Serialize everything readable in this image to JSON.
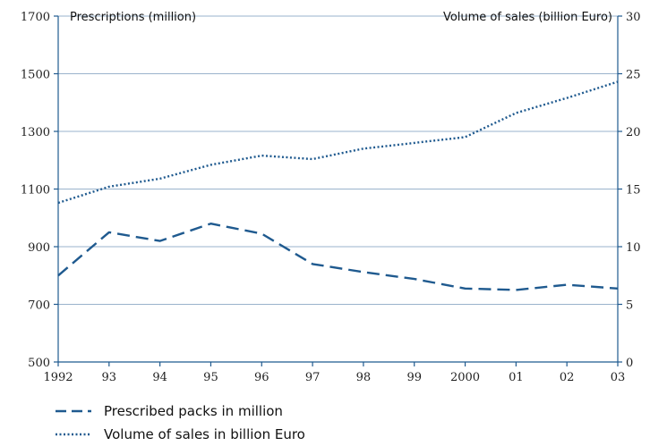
{
  "chart_data": {
    "type": "line",
    "x": [
      "1992",
      "93",
      "94",
      "95",
      "96",
      "97",
      "98",
      "99",
      "2000",
      "01",
      "02",
      "03"
    ],
    "left_axis_title": "Prescriptions (million)",
    "right_axis_title": "Volume of sales (billion Euro)",
    "left_ylim": [
      500,
      1700
    ],
    "right_ylim": [
      0,
      30
    ],
    "left_ticks": [
      500,
      700,
      900,
      1100,
      1300,
      1500,
      1700
    ],
    "left_tick_labels": [
      "500",
      "700",
      "900",
      "1100",
      "1300",
      "1500",
      "1700"
    ],
    "right_ticks": [
      0,
      5,
      10,
      15,
      20,
      25,
      30
    ],
    "right_tick_labels": [
      "0",
      "5",
      "10",
      "15",
      "20",
      "25",
      "30"
    ],
    "grid": true,
    "series": [
      {
        "name": "Prescribed packs in million",
        "axis": "left",
        "style": "dashed",
        "values": [
          800,
          950,
          920,
          980,
          945,
          840,
          812,
          788,
          755,
          750,
          768,
          755
        ]
      },
      {
        "name": "Volume of sales in billion Euro",
        "axis": "right",
        "style": "dotted",
        "values": [
          13.8,
          15.2,
          15.9,
          17.1,
          17.9,
          17.6,
          18.5,
          19.0,
          19.5,
          21.6,
          22.9,
          24.3
        ]
      }
    ],
    "colors": {
      "line": "#1f5a8f",
      "grid": "#9ab3cc",
      "axis": "#1f5a8f"
    }
  }
}
